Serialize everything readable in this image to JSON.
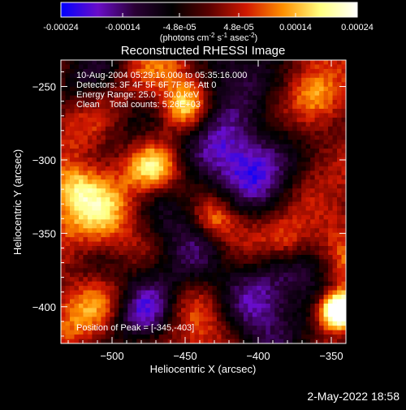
{
  "colorbar": {
    "ticks": [
      "-0.00024",
      "-0.00014",
      "-4.8e-05",
      "4.8e-05",
      "0.00014",
      "0.00024"
    ],
    "tick_values": [
      -0.00024,
      -0.00014,
      -4.8e-05,
      4.8e-05,
      0.00014,
      0.00024
    ],
    "range": [
      -0.00024,
      0.00024
    ],
    "unit_prefix": "(photons cm",
    "unit_exp1": "-2",
    "unit_mid1": " s",
    "unit_exp2": "-1",
    "unit_mid2": " asec",
    "unit_exp3": "-2",
    "unit_suffix": ")",
    "stops": [
      "#0000ff",
      "#6a0dc8",
      "#2a0034",
      "#000000",
      "#5a0000",
      "#d01800",
      "#ff9000",
      "#ffff80",
      "#ffffff"
    ]
  },
  "chart_data": {
    "type": "heatmap",
    "title": "Reconstructed RHESSI Image",
    "xlabel": "Heliocentric X (arcsec)",
    "ylabel": "Heliocentric Y (arcsec)",
    "xlim": [
      -535,
      -340
    ],
    "ylim": [
      -425,
      -232
    ],
    "x_ticks": [
      -500,
      -450,
      -400,
      -350
    ],
    "y_ticks": [
      -250,
      -300,
      -350,
      -400
    ],
    "annotations": [
      "10-Aug-2004 05:29:16.000 to 05:35:16.000",
      "Detectors: 3F 4F 5F 6F 7F 8F, Att 0",
      "Energy Range: 25.0 - 50.0 keV",
      "Clean    Total counts: 5.26E+03"
    ],
    "peak_label": "Position of Peak = [-345,-403]",
    "peak": [
      -345,
      -403
    ]
  },
  "timestamp": "2-May-2022 18:58"
}
